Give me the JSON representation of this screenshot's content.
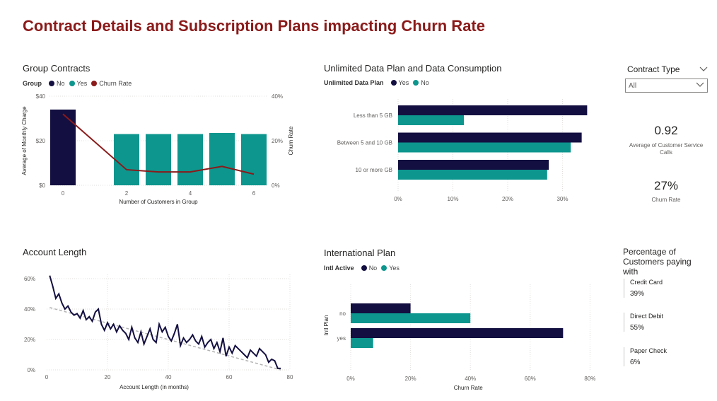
{
  "page_title": "Contract Details and Subscription Plans impacting Churn Rate",
  "colors": {
    "navy": "#130f40",
    "teal": "#0d968e",
    "red": "#8b1a1a",
    "trend": "#b3b3b3"
  },
  "slicer": {
    "title": "Contract Type",
    "value": "All",
    "icon": "chevron-down-icon"
  },
  "cards": [
    {
      "value": "0.92",
      "label_line1": "Average of Customer Service",
      "label_line2": "Calls"
    },
    {
      "value": "27%",
      "label_line1": "Churn Rate",
      "label_line2": ""
    }
  ],
  "payment": {
    "title_line1": "Percentage of",
    "title_line2": "Customers paying",
    "title_line3": "with",
    "items": [
      {
        "label": "Credit Card",
        "value": "39%"
      },
      {
        "label": "Direct Debit",
        "value": "55%"
      },
      {
        "label": "Paper Check",
        "value": "6%"
      }
    ]
  },
  "chart_data": [
    {
      "id": "group_contracts",
      "type": "bar",
      "title": "Group Contracts",
      "legend": {
        "title": "Group",
        "entries": [
          "No",
          "Yes",
          "Churn Rate"
        ]
      },
      "xlabel": "Number of Customers in Group",
      "ylabel": "Average of Monthly Charge",
      "y2label": "Churn Rate",
      "x_ticks": [
        "0",
        "2",
        "4",
        "6"
      ],
      "y_ticks": [
        "$0",
        "$20",
        "$40"
      ],
      "y2_ticks": [
        "0%",
        "20%",
        "40%"
      ],
      "ylim": [
        0,
        40
      ],
      "y2lim": [
        0,
        40
      ],
      "x": [
        0,
        2,
        3,
        4,
        5,
        6
      ],
      "bar_series": [
        {
          "name": "No",
          "x": [
            0
          ],
          "values": [
            34
          ]
        },
        {
          "name": "Yes",
          "x": [
            2,
            3,
            4,
            5,
            6
          ],
          "values": [
            23,
            23,
            23,
            23.5,
            23
          ]
        }
      ],
      "line_series": {
        "name": "Churn Rate",
        "x": [
          0,
          2,
          3,
          4,
          5,
          6
        ],
        "values": [
          32,
          7,
          6,
          6,
          8.5,
          5
        ]
      }
    },
    {
      "id": "unlimited_data",
      "type": "bar",
      "orientation": "horizontal",
      "title": "Unlimited Data Plan and Data Consumption",
      "legend": {
        "title": "Unlimited Data Plan",
        "entries": [
          "Yes",
          "No"
        ]
      },
      "categories": [
        "Less than 5 GB",
        "Between 5 and 10 GB",
        "10 or more GB"
      ],
      "x_ticks": [
        "0%",
        "10%",
        "20%",
        "30%"
      ],
      "xlim": [
        0,
        35
      ],
      "series": [
        {
          "name": "Yes",
          "values": [
            34.5,
            33.5,
            27.5
          ]
        },
        {
          "name": "No",
          "values": [
            12,
            31.5,
            27.2
          ]
        }
      ]
    },
    {
      "id": "account_length",
      "type": "line",
      "title": "Account Length",
      "xlabel": "Account Length (in months)",
      "x_ticks": [
        "0",
        "20",
        "40",
        "60",
        "80"
      ],
      "y_ticks": [
        "0%",
        "20%",
        "40%",
        "60%"
      ],
      "xlim": [
        0,
        80
      ],
      "ylim": [
        0,
        65
      ],
      "x": [
        1,
        2,
        3,
        4,
        5,
        6,
        7,
        8,
        9,
        10,
        11,
        12,
        13,
        14,
        15,
        16,
        17,
        18,
        19,
        20,
        21,
        22,
        23,
        24,
        25,
        26,
        27,
        28,
        29,
        30,
        31,
        32,
        33,
        34,
        35,
        36,
        37,
        38,
        39,
        40,
        41,
        42,
        43,
        44,
        45,
        46,
        47,
        48,
        49,
        50,
        51,
        52,
        53,
        54,
        55,
        56,
        57,
        58,
        59,
        60,
        61,
        62,
        63,
        64,
        65,
        66,
        67,
        68,
        69,
        70,
        71,
        72,
        73,
        74,
        75,
        76,
        77
      ],
      "series": [
        {
          "name": "Churn Rate",
          "values": [
            62,
            55,
            47,
            50,
            44,
            40,
            42,
            38,
            36,
            37,
            34,
            39,
            33,
            35,
            32,
            38,
            40,
            30,
            26,
            31,
            27,
            30,
            25,
            29,
            26,
            24,
            20,
            28,
            21,
            18,
            25,
            17,
            22,
            27,
            20,
            18,
            30,
            25,
            28,
            22,
            19,
            24,
            30,
            16,
            21,
            18,
            20,
            23,
            19,
            17,
            22,
            15,
            18,
            20,
            14,
            18,
            12,
            21,
            9,
            15,
            11,
            16,
            14,
            12,
            10,
            8,
            13,
            11,
            9,
            14,
            12,
            10,
            5,
            7,
            6,
            1,
            1
          ]
        },
        {
          "name": "Trend",
          "style": "dashed",
          "x": [
            1,
            77
          ],
          "values": [
            41,
            0
          ]
        }
      ]
    },
    {
      "id": "international_plan",
      "type": "bar",
      "orientation": "horizontal",
      "title": "International Plan",
      "legend": {
        "title": "Intl Active",
        "entries": [
          "No",
          "Yes"
        ]
      },
      "categories": [
        "no",
        "yes"
      ],
      "ylabel": "Intl Plan",
      "xlabel": "Churn Rate",
      "x_ticks": [
        "0%",
        "20%",
        "40%",
        "60%",
        "80%"
      ],
      "xlim": [
        0,
        80
      ],
      "series": [
        {
          "name": "No",
          "values": [
            20,
            71
          ]
        },
        {
          "name": "Yes",
          "values": [
            40,
            7.5
          ]
        }
      ]
    }
  ]
}
